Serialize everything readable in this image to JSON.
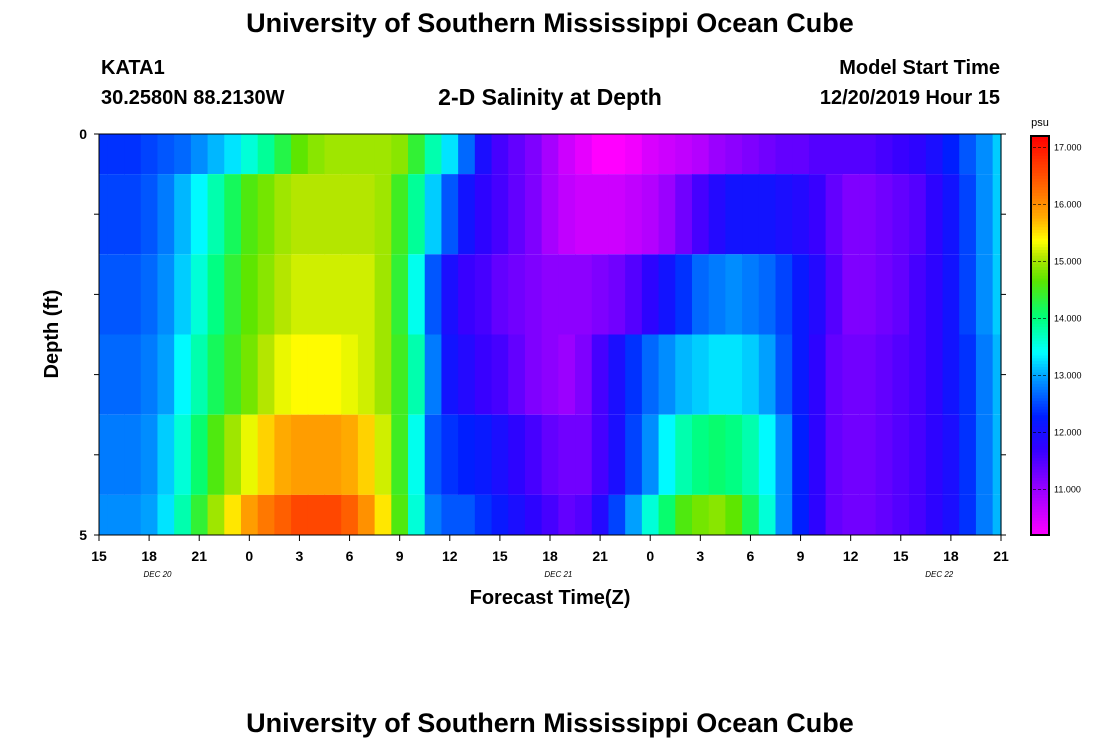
{
  "header": {
    "title": "University of Southern Mississippi Ocean Cube",
    "station_id": "KATA1",
    "station_coords": "30.2580N 88.2130W",
    "plot_title": "2-D Salinity at Depth",
    "model_start_label": "Model Start Time",
    "model_start_value": "12/20/2019 Hour 15"
  },
  "footer": {
    "title": "University of Southern Mississippi Ocean Cube"
  },
  "chart_data": {
    "type": "heatmap",
    "title": "2-D Salinity at Depth",
    "xlabel": "Forecast Time(Z)",
    "ylabel": "Depth (ft)",
    "x_tick_labels": [
      "15",
      "18",
      "21",
      "0",
      "3",
      "6",
      "9",
      "12",
      "15",
      "18",
      "21",
      "0",
      "3",
      "6",
      "9",
      "12",
      "15",
      "18",
      "21"
    ],
    "date_labels": [
      "DEC 20",
      "DEC 21",
      "DEC 22"
    ],
    "y_tick_labels": [
      "0",
      "5"
    ],
    "ylim": [
      0,
      5
    ],
    "hour_range": [
      0,
      54
    ],
    "time_step_hours": 1,
    "depth_levels_ft": [
      0,
      1,
      2,
      3,
      4,
      5
    ],
    "colorbar": {
      "unit": "psu",
      "range": [
        10.2,
        17.2
      ],
      "tick_labels": [
        "17.000",
        "16.000",
        "15.000",
        "14.000",
        "13.000",
        "12.000",
        "11.000"
      ],
      "tick_values": [
        17,
        16,
        15,
        14,
        13,
        12,
        11
      ]
    },
    "salinity_psu": [
      [
        12.4,
        12.4,
        12.4,
        12.5,
        12.6,
        12.7,
        12.9,
        13.1,
        13.3,
        13.6,
        13.9,
        14.3,
        14.7,
        14.9,
        15.0,
        15.0,
        15.0,
        15.0,
        14.9,
        14.4,
        13.8,
        13.3,
        12.7,
        12.0,
        11.6,
        11.4,
        11.2,
        10.9,
        10.6,
        10.4,
        10.2,
        10.2,
        10.3,
        10.5,
        10.6,
        10.7,
        10.8,
        11.0,
        11.1,
        11.2,
        11.3,
        11.4,
        11.4,
        11.5,
        11.5,
        11.5,
        11.5,
        11.6,
        11.7,
        11.8,
        12.0,
        12.3,
        12.6,
        12.9,
        13.2
      ],
      [
        12.5,
        12.5,
        12.5,
        12.6,
        12.8,
        13.1,
        13.4,
        13.8,
        14.2,
        14.6,
        14.8,
        15.0,
        15.1,
        15.1,
        15.1,
        15.1,
        15.1,
        15.0,
        14.5,
        13.9,
        13.2,
        12.6,
        12.1,
        11.8,
        11.6,
        11.4,
        11.2,
        10.9,
        10.7,
        10.6,
        10.6,
        10.6,
        10.7,
        10.8,
        11.0,
        11.3,
        11.6,
        11.9,
        12.1,
        12.1,
        12.1,
        12.0,
        11.9,
        11.7,
        11.4,
        11.2,
        11.2,
        11.3,
        11.4,
        11.5,
        11.8,
        12.1,
        12.5,
        12.9,
        13.2
      ],
      [
        12.6,
        12.6,
        12.6,
        12.7,
        12.9,
        13.2,
        13.6,
        14.0,
        14.4,
        14.7,
        14.9,
        15.1,
        15.2,
        15.2,
        15.2,
        15.2,
        15.2,
        15.0,
        14.4,
        13.5,
        12.6,
        12.0,
        11.7,
        11.6,
        11.4,
        11.3,
        11.2,
        11.1,
        11.1,
        11.1,
        11.2,
        11.3,
        11.5,
        11.8,
        12.1,
        12.4,
        12.7,
        12.8,
        12.9,
        12.8,
        12.7,
        12.5,
        12.2,
        11.9,
        11.5,
        11.2,
        11.2,
        11.3,
        11.4,
        11.6,
        11.8,
        12.1,
        12.5,
        12.9,
        13.2
      ],
      [
        12.7,
        12.7,
        12.7,
        12.8,
        13.0,
        13.4,
        13.8,
        14.2,
        14.5,
        14.8,
        15.1,
        15.3,
        15.4,
        15.4,
        15.4,
        15.3,
        15.2,
        15.0,
        14.5,
        13.8,
        12.8,
        12.1,
        11.9,
        11.7,
        11.6,
        11.4,
        11.2,
        11.1,
        11.0,
        11.2,
        11.6,
        12.0,
        12.4,
        12.7,
        12.9,
        13.1,
        13.2,
        13.3,
        13.3,
        13.2,
        13.0,
        12.6,
        12.2,
        11.8,
        11.4,
        11.3,
        11.3,
        11.4,
        11.5,
        11.6,
        11.8,
        12.1,
        12.4,
        12.8,
        13.1
      ],
      [
        12.8,
        12.8,
        12.8,
        12.9,
        13.2,
        13.6,
        14.1,
        14.6,
        15.0,
        15.3,
        15.6,
        15.8,
        15.9,
        15.9,
        15.9,
        15.8,
        15.6,
        15.2,
        14.5,
        13.5,
        12.6,
        12.4,
        12.3,
        12.2,
        12.0,
        11.8,
        11.6,
        11.4,
        11.3,
        11.3,
        11.6,
        12.0,
        12.5,
        12.9,
        13.4,
        13.8,
        14.0,
        14.1,
        14.0,
        13.8,
        13.4,
        12.9,
        12.3,
        11.8,
        11.4,
        11.3,
        11.3,
        11.4,
        11.5,
        11.6,
        11.8,
        12.0,
        12.4,
        12.8,
        13.1
      ],
      [
        12.9,
        12.9,
        12.9,
        13.0,
        13.3,
        13.8,
        14.4,
        15.0,
        15.5,
        15.9,
        16.2,
        16.4,
        16.6,
        16.6,
        16.6,
        16.4,
        16.0,
        15.5,
        14.6,
        13.6,
        12.8,
        12.6,
        12.6,
        12.4,
        12.2,
        12.0,
        11.8,
        11.6,
        11.4,
        11.5,
        11.9,
        12.5,
        13.0,
        13.6,
        14.1,
        14.6,
        14.8,
        14.9,
        14.7,
        14.2,
        13.6,
        12.9,
        12.3,
        11.8,
        11.4,
        11.3,
        11.3,
        11.4,
        11.5,
        11.6,
        11.8,
        12.0,
        12.4,
        12.8,
        13.1
      ]
    ]
  }
}
